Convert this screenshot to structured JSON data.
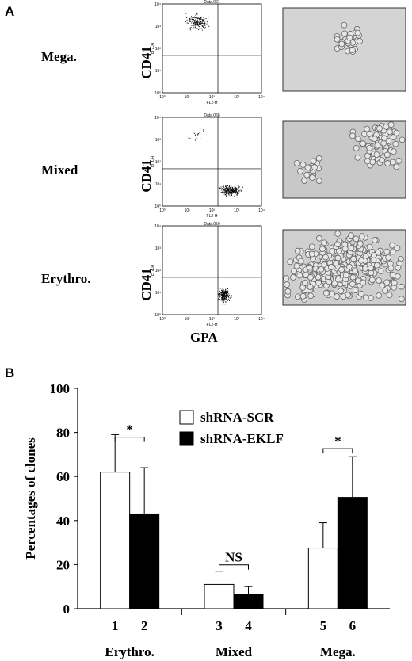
{
  "panel_a": {
    "label": "A",
    "rows": [
      {
        "name": "Mega.",
        "plot_title": "Data.001"
      },
      {
        "name": "Mixed",
        "plot_title": "Data.058"
      },
      {
        "name": "Erythro.",
        "plot_title": "Data.059"
      }
    ],
    "y_axis_label": "CD41",
    "x_axis_label": "GPA",
    "plot_x_channel": "FL2-H",
    "plot_y_channel": "FL4-H",
    "plot_ticks": [
      "10⁰",
      "10¹",
      "10²",
      "10³",
      "10⁴"
    ]
  },
  "panel_b_label": "B",
  "chart_data": {
    "type": "bar",
    "categories": [
      "Erythro.",
      "Mixed",
      "Mega."
    ],
    "bar_labels": [
      "1",
      "2",
      "3",
      "4",
      "5",
      "6"
    ],
    "y_label": "Percentages of clones",
    "ylim": [
      0,
      100
    ],
    "yticks": [
      0,
      20,
      40,
      60,
      80,
      100
    ],
    "legend": "top-center",
    "series": [
      {
        "name": "shRNA-SCR",
        "color": "#ffffff",
        "values": [
          62,
          11,
          27.5
        ],
        "errors": [
          17,
          6,
          11.5
        ]
      },
      {
        "name": "shRNA-EKLF",
        "color": "#000000",
        "values": [
          43,
          6.5,
          50.5
        ],
        "errors": [
          21,
          3.5,
          18.5
        ]
      }
    ],
    "annotations": [
      "*",
      "NS",
      "*"
    ]
  }
}
